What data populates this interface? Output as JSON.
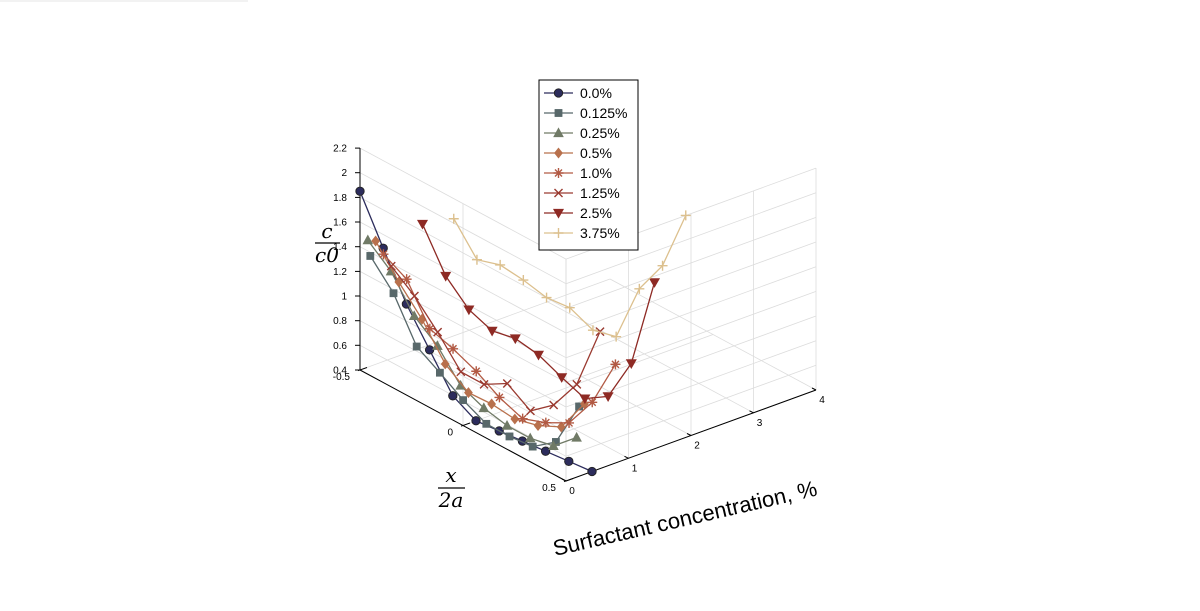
{
  "chart_data": {
    "type": "line",
    "projection": "3d",
    "title": "",
    "xlabel": "Surfactant concentration, %",
    "ylabel": {
      "numerator": "x",
      "denominator": "2a"
    },
    "zlabel": {
      "numerator": "c",
      "denominator": "c0"
    },
    "xlim": [
      0,
      4
    ],
    "ylim": [
      -0.5,
      0.5
    ],
    "zlim": [
      0.4,
      2.2
    ],
    "x_ticks": [
      "0",
      "1",
      "2",
      "3",
      "4"
    ],
    "y_ticks": [
      "-0.5",
      "0",
      "0.5"
    ],
    "z_ticks": [
      "0.4",
      "0.6",
      "0.8",
      "1",
      "1.2",
      "1.4",
      "1.6",
      "1.8",
      "2",
      "2.2"
    ],
    "grid": true,
    "legend_position": "top-center",
    "x_offset_unit": 0.125,
    "series": [
      {
        "name": "0.0%",
        "color": "#2c2c5c",
        "marker": "circle",
        "offset": 0,
        "y": [
          -0.5,
          -0.4,
          -0.3,
          -0.2,
          -0.1,
          0,
          0.1,
          0.2,
          0.3,
          0.4,
          0.5
        ],
        "z": [
          1.85,
          1.47,
          1.1,
          0.81,
          0.52,
          0.4,
          0.4,
          0.4,
          0.4,
          0.4,
          0.4
        ]
      },
      {
        "name": "0.125%",
        "color": "#58686a",
        "marker": "square",
        "offset": 0,
        "y": [
          -0.45,
          -0.35,
          -0.25,
          -0.15,
          -0.05,
          0.05,
          0.15,
          0.25,
          0.35,
          0.45
        ],
        "z": [
          1.37,
          1.15,
          0.8,
          0.67,
          0.53,
          0.42,
          0.4,
          0.4,
          0.52,
          0.89
        ]
      },
      {
        "name": "0.25%",
        "color": "#707a66",
        "marker": "triangle",
        "offset": 1,
        "y": [
          -0.5,
          -0.4,
          -0.3,
          -0.2,
          -0.1,
          0,
          0.1,
          0.2,
          0.3,
          0.4
        ],
        "z": [
          1.43,
          1.26,
          0.98,
          0.82,
          0.58,
          0.48,
          0.42,
          0.4,
          0.42,
          0.57
        ]
      },
      {
        "name": "0.5%",
        "color": "#b8704c",
        "marker": "diamond",
        "offset": 2,
        "y": [
          -0.5,
          -0.4,
          -0.3,
          -0.2,
          -0.1,
          0,
          0.1,
          0.2,
          0.3,
          0.4
        ],
        "z": [
          1.4,
          1.15,
          0.93,
          0.65,
          0.5,
          0.49,
          0.45,
          0.48,
          0.55,
          0.82
        ]
      },
      {
        "name": "1.0%",
        "color": "#b25a44",
        "marker": "asterisk",
        "offset": 3,
        "y": [
          -0.5,
          -0.4,
          -0.3,
          -0.2,
          -0.1,
          0,
          0.1,
          0.2,
          0.3,
          0.4,
          0.5
        ],
        "z": [
          1.27,
          1.15,
          0.83,
          0.75,
          0.65,
          0.52,
          0.43,
          0.48,
          0.56,
          0.81,
          1.2
        ]
      },
      {
        "name": "1.25%",
        "color": "#9a3a30",
        "marker": "x",
        "offset": 4,
        "y": [
          -0.5,
          -0.4,
          -0.3,
          -0.2,
          -0.1,
          0,
          0.1,
          0.2,
          0.3,
          0.4
        ],
        "z": [
          1.15,
          0.99,
          0.78,
          0.54,
          0.52,
          0.61,
          0.47,
          0.6,
          0.85,
          1.36
        ]
      },
      {
        "name": "2.5%",
        "color": "#8e2a24",
        "marker": "triangle-down",
        "offset": 8,
        "y": [
          -0.5,
          -0.4,
          -0.3,
          -0.2,
          -0.1,
          0,
          0.1,
          0.2,
          0.3,
          0.4,
          0.5
        ],
        "z": [
          1.4,
          1.06,
          0.87,
          0.78,
          0.8,
          0.75,
          0.65,
          0.56,
          0.66,
          1.01,
          1.75
        ]
      },
      {
        "name": "3.75%",
        "color": "#dcc08e",
        "marker": "plus",
        "offset": 12,
        "y": [
          -0.5,
          -0.4,
          -0.3,
          -0.2,
          -0.1,
          0,
          0.1,
          0.2,
          0.3,
          0.4,
          0.5
        ],
        "z": [
          1.35,
          1.1,
          1.14,
          1.1,
          1.04,
          1.04,
          0.94,
          0.97,
          1.44,
          1.71,
          2.2
        ]
      }
    ]
  }
}
